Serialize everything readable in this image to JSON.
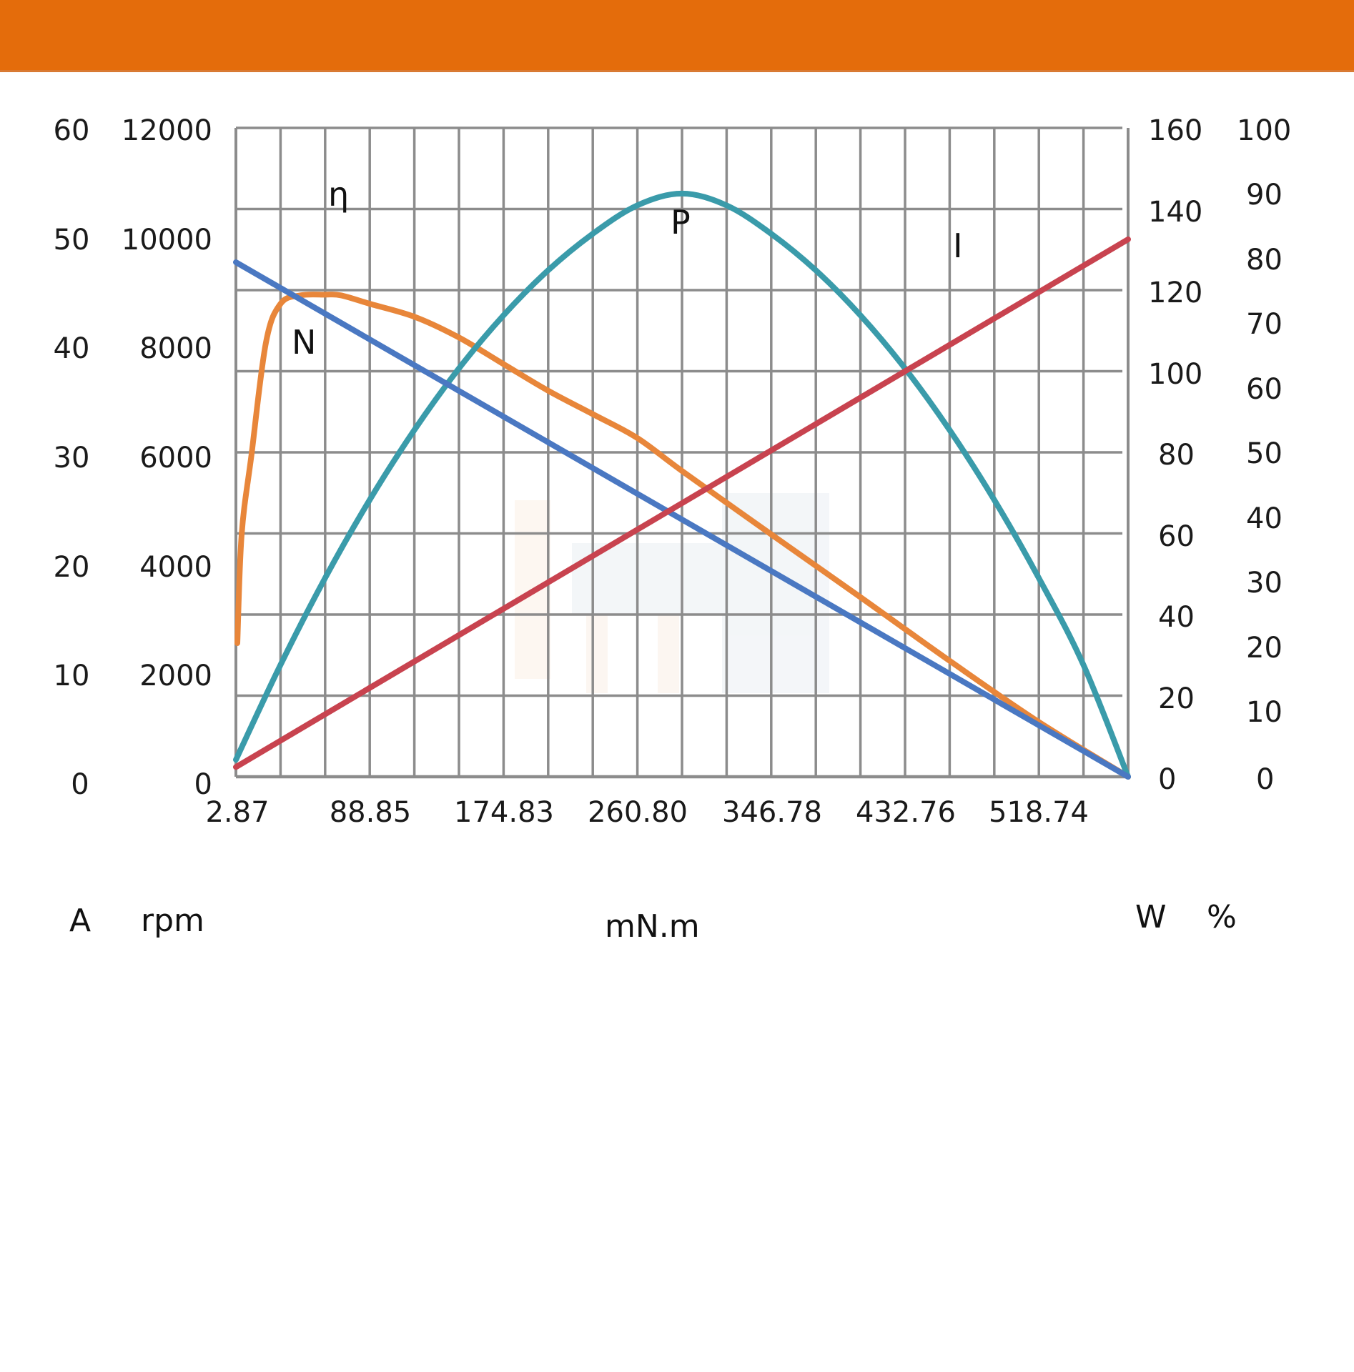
{
  "header": {
    "bar_color": "#E46C0B"
  },
  "units": {
    "current": "A",
    "speed": "rpm",
    "torque": "mN.m",
    "power": "W",
    "efficiency": "%"
  },
  "curve_labels": {
    "efficiency": "η",
    "speed": "N",
    "power": "P",
    "current": "I"
  },
  "colors": {
    "speed": "#4A78C2",
    "efficiency": "#E8863A",
    "power": "#3A9BAA",
    "current": "#C8434F",
    "grid": "#8C8C8C"
  },
  "chart_data": {
    "type": "line",
    "title": "",
    "xlabel": "mN.m",
    "x_ticks": [
      "2.87",
      "88.85",
      "174.83",
      "260.80",
      "346.78",
      "432.76",
      "518.74"
    ],
    "xlim": [
      2.87,
      576.1
    ],
    "grid": true,
    "legend": "inline labels (η, N, P, I)",
    "axes": {
      "left_outer": {
        "label": "A",
        "ticks": [
          "60",
          "50",
          "40",
          "30",
          "20",
          "10",
          "0"
        ],
        "range": [
          0,
          60
        ],
        "series": "I"
      },
      "left_inner": {
        "label": "rpm",
        "ticks": [
          "12000",
          "10000",
          "8000",
          "6000",
          "4000",
          "2000",
          "0"
        ],
        "range": [
          0,
          12000
        ],
        "series": "N"
      },
      "right_inner": {
        "label": "W",
        "ticks": [
          "160",
          "140",
          "120",
          "100",
          "80",
          "60",
          "40",
          "20",
          "0"
        ],
        "range": [
          0,
          160
        ],
        "series": "P"
      },
      "right_outer": {
        "label": "%",
        "ticks": [
          "100",
          "90",
          "80",
          "70",
          "60",
          "50",
          "40",
          "30",
          "20",
          "10",
          "0"
        ],
        "range": [
          0,
          100
        ],
        "series": "η"
      }
    },
    "series": [
      {
        "name": "N (speed, rpm)",
        "key": "speed",
        "axis": "left_inner",
        "x": [
          2.87,
          576.1
        ],
        "values": [
          9515,
          0
        ]
      },
      {
        "name": "I (current, A)",
        "key": "current",
        "axis": "left_outer",
        "x": [
          2.87,
          576.1
        ],
        "values": [
          0.9,
          49.7
        ]
      },
      {
        "name": "P (output power, W)",
        "key": "power",
        "axis": "right_inner",
        "x": [
          2.87,
          31.53,
          60.19,
          88.85,
          117.51,
          146.17,
          174.83,
          203.49,
          232.15,
          260.8,
          289.46,
          318.12,
          346.78,
          375.44,
          404.1,
          432.76,
          461.42,
          490.08,
          518.74,
          547.4,
          576.1
        ],
        "values": [
          4.2,
          27.6,
          49.0,
          68.3,
          85.5,
          100.7,
          113.8,
          124.9,
          133.9,
          140.9,
          143.8,
          140.9,
          133.9,
          124.9,
          113.8,
          100.7,
          85.5,
          68.3,
          49.0,
          27.6,
          0
        ]
      },
      {
        "name": "η (efficiency, %)",
        "key": "efficiency",
        "axis": "right_outer",
        "x": [
          3.79,
          6.54,
          12.96,
          22.15,
          31.53,
          44.39,
          60.19,
          70.29,
          88.85,
          117.51,
          146.17,
          175.46,
          203.49,
          232.85,
          260.8,
          290.2,
          347.15,
          402.26,
          461.88,
          518.37,
          576.1
        ],
        "values": [
          20.6,
          37.3,
          49.8,
          66.9,
          72.9,
          74.2,
          74.3,
          74.2,
          72.9,
          70.9,
          67.7,
          63.5,
          59.5,
          55.8,
          52.2,
          47.0,
          37.3,
          28.0,
          17.8,
          8.5,
          0
        ]
      }
    ]
  }
}
